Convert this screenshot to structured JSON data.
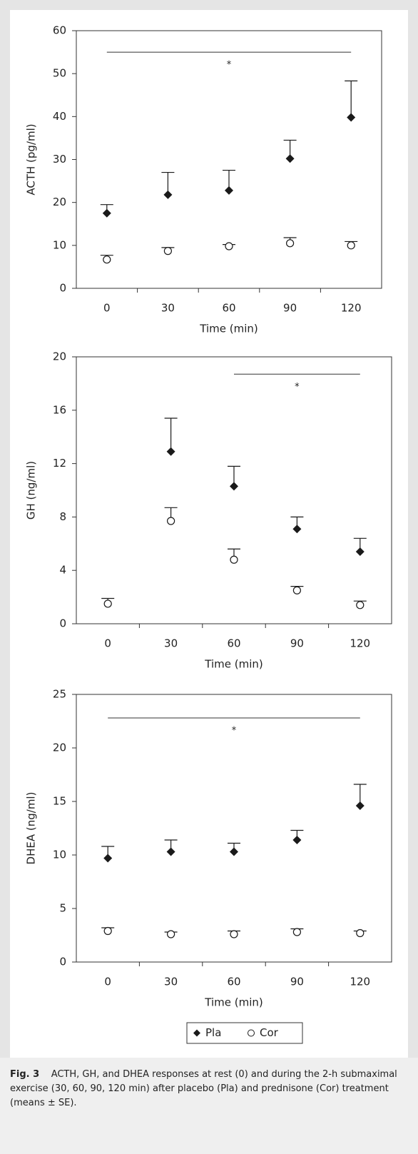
{
  "chart_data": [
    {
      "type": "scatter",
      "y_label": "ACTH (pg/ml)",
      "x_label": "Time (min)",
      "categories": [
        "0",
        "30",
        "60",
        "90",
        "120"
      ],
      "ylim": [
        0,
        60
      ],
      "yticks": [
        0,
        10,
        20,
        30,
        40,
        50,
        60
      ],
      "series": [
        {
          "marker": "diamond",
          "color": "#1a1a1a",
          "values": [
            17.5,
            21.8,
            22.8,
            30.2,
            39.8
          ],
          "errors": [
            2.0,
            5.2,
            4.7,
            4.3,
            8.5
          ]
        },
        {
          "marker": "circle",
          "color": "#1a1a1a",
          "values": [
            6.7,
            8.7,
            9.8,
            10.5,
            10.0
          ],
          "errors": [
            1.0,
            0.8,
            0.4,
            1.3,
            0.9
          ]
        }
      ],
      "annotation": {
        "text": "*",
        "y": 55,
        "span": [
          "0",
          "120"
        ]
      }
    },
    {
      "type": "scatter",
      "y_label": "GH (ng/ml)",
      "x_label": "Time (min)",
      "categories": [
        "0",
        "30",
        "60",
        "90",
        "120"
      ],
      "ylim": [
        0,
        20
      ],
      "yticks": [
        0,
        4,
        8,
        12,
        16,
        20
      ],
      "series": [
        {
          "marker": "diamond",
          "color": "#1a1a1a",
          "values": [
            null,
            12.9,
            10.3,
            7.1,
            5.4
          ],
          "errors": [
            null,
            2.5,
            1.5,
            0.9,
            1.0
          ]
        },
        {
          "marker": "circle",
          "color": "#1a1a1a",
          "values": [
            1.5,
            7.7,
            4.8,
            2.5,
            1.4
          ],
          "errors": [
            0.4,
            1.0,
            0.8,
            0.3,
            0.3
          ]
        }
      ],
      "annotation": {
        "text": "*",
        "y": 18.7,
        "span": [
          "60",
          "120"
        ]
      }
    },
    {
      "type": "scatter",
      "y_label": "DHEA (ng/ml)",
      "x_label": "Time (min)",
      "categories": [
        "0",
        "30",
        "60",
        "90",
        "120"
      ],
      "ylim": [
        0,
        25
      ],
      "yticks": [
        0,
        5,
        10,
        15,
        20,
        25
      ],
      "series": [
        {
          "name": "Pla",
          "marker": "diamond",
          "color": "#1a1a1a",
          "values": [
            9.7,
            10.3,
            10.3,
            11.4,
            14.6
          ],
          "errors": [
            1.1,
            1.1,
            0.8,
            0.9,
            2.0
          ]
        },
        {
          "name": "Cor",
          "marker": "circle",
          "color": "#1a1a1a",
          "values": [
            2.9,
            2.6,
            2.6,
            2.8,
            2.7
          ],
          "errors": [
            0.3,
            0.2,
            0.3,
            0.3,
            0.2
          ]
        }
      ],
      "annotation": {
        "text": "*",
        "y": 22.8,
        "span": [
          "0",
          "120"
        ]
      }
    }
  ],
  "caption": {
    "label": "Fig. 3",
    "text": "ACTH, GH, and DHEA responses at rest (0) and during the 2-h submaximal exercise (30, 60, 90, 120 min) after placebo (Pla) and prednisone (Cor) treatment (means ± SE)."
  }
}
